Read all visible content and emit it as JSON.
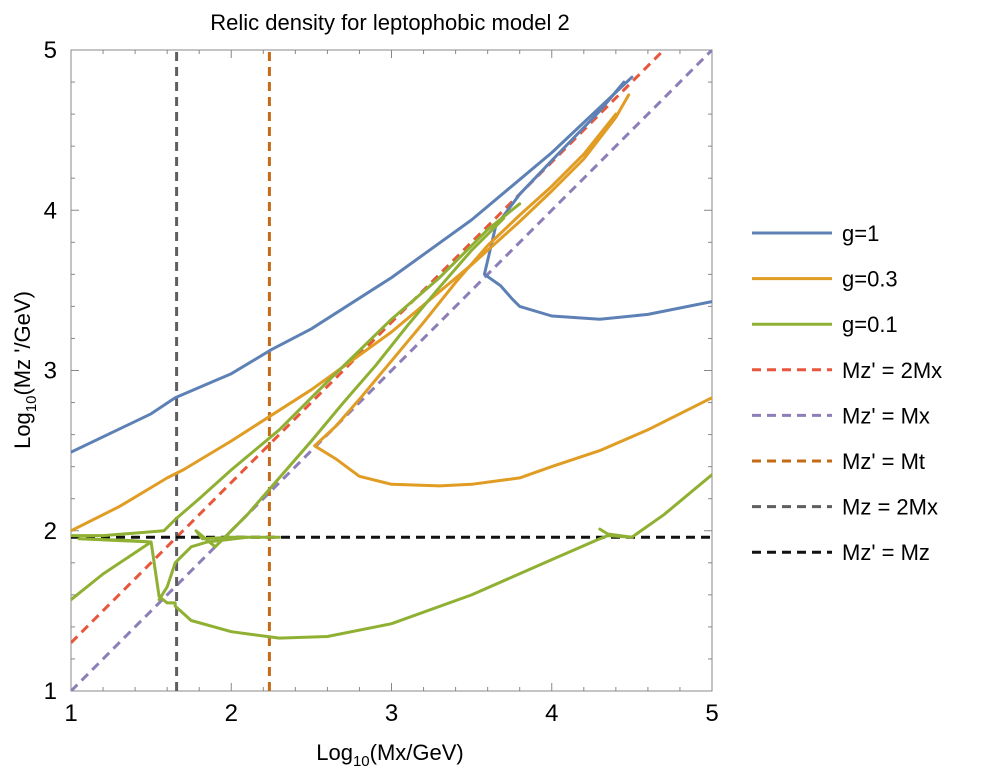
{
  "chart_data": {
    "type": "line",
    "title": "Relic density for leptophobic model 2",
    "xlabel": {
      "prefix": "Log",
      "sub": "10",
      "rest": "(Mx/GeV)"
    },
    "ylabel": {
      "prefix": "Log",
      "sub": "10",
      "rest": "(Mz '/GeV)"
    },
    "xlim": [
      1,
      5
    ],
    "ylim": [
      1,
      5
    ],
    "xticks": [
      1,
      2,
      3,
      4,
      5
    ],
    "yticks": [
      1,
      2,
      3,
      4,
      5
    ],
    "grid": false,
    "legend_position": "right",
    "series": [
      {
        "name": "g=1",
        "color": "#5E81B5",
        "style": "solid",
        "segments": [
          [
            [
              1,
              2.49
            ],
            [
              1.5,
              2.73
            ],
            [
              1.65,
              2.83
            ],
            [
              2,
              2.98
            ],
            [
              2.25,
              3.13
            ],
            [
              2.5,
              3.26
            ],
            [
              3,
              3.58
            ],
            [
              3.5,
              3.94
            ],
            [
              4,
              4.36
            ],
            [
              4.5,
              4.83
            ]
          ],
          [
            [
              4.45,
              4.8
            ],
            [
              4.3,
              4.62
            ],
            [
              4,
              4.31
            ],
            [
              3.8,
              4.1
            ],
            [
              3.65,
              3.9
            ],
            [
              3.58,
              3.6
            ],
            [
              3.68,
              3.53
            ],
            [
              3.75,
              3.45
            ],
            [
              3.8,
              3.4
            ],
            [
              4,
              3.34
            ],
            [
              4.3,
              3.32
            ],
            [
              4.6,
              3.35
            ],
            [
              5,
              3.43
            ]
          ]
        ]
      },
      {
        "name": "g=0.3",
        "color": "#E19C24",
        "style": "solid",
        "segments": [
          [
            [
              1,
              2.0
            ],
            [
              1.3,
              2.15
            ],
            [
              1.6,
              2.33
            ],
            [
              1.7,
              2.38
            ],
            [
              2,
              2.56
            ],
            [
              2.5,
              2.88
            ],
            [
              3,
              3.24
            ],
            [
              3.5,
              3.66
            ],
            [
              3.8,
              3.93
            ],
            [
              4,
              4.12
            ],
            [
              4.2,
              4.32
            ],
            [
              4.4,
              4.58
            ],
            [
              4.48,
              4.72
            ]
          ],
          [
            [
              4.4,
              4.6
            ],
            [
              4.2,
              4.35
            ],
            [
              4,
              4.15
            ],
            [
              3.8,
              3.97
            ],
            [
              3.6,
              3.78
            ],
            [
              3.4,
              3.55
            ],
            [
              3.2,
              3.3
            ],
            [
              3,
              3.06
            ],
            [
              2.8,
              2.82
            ],
            [
              2.65,
              2.65
            ],
            [
              2.52,
              2.53
            ],
            [
              2.65,
              2.45
            ],
            [
              2.8,
              2.34
            ],
            [
              3,
              2.29
            ],
            [
              3.3,
              2.28
            ],
            [
              3.5,
              2.29
            ],
            [
              3.8,
              2.33
            ],
            [
              4,
              2.4
            ],
            [
              4.3,
              2.5
            ],
            [
              4.6,
              2.63
            ],
            [
              5,
              2.83
            ]
          ]
        ]
      },
      {
        "name": "g=0.1",
        "color": "#8FB032",
        "style": "solid",
        "segments": [
          [
            [
              1,
              1.97
            ],
            [
              1.2,
              1.97
            ],
            [
              1.58,
              2.0
            ],
            [
              1.65,
              2.07
            ],
            [
              1.8,
              2.2
            ],
            [
              2,
              2.38
            ],
            [
              2.3,
              2.63
            ],
            [
              2.6,
              2.93
            ],
            [
              3,
              3.32
            ],
            [
              3.3,
              3.58
            ],
            [
              3.6,
              3.88
            ],
            [
              3.8,
              4.04
            ]
          ],
          [
            [
              3.7,
              3.95
            ],
            [
              3.5,
              3.75
            ],
            [
              3.3,
              3.52
            ],
            [
              3.1,
              3.28
            ],
            [
              2.9,
              3.03
            ],
            [
              2.7,
              2.8
            ],
            [
              2.5,
              2.56
            ],
            [
              2.3,
              2.33
            ],
            [
              2.1,
              2.1
            ],
            [
              1.9,
              1.9
            ],
            [
              1.78,
              2.0
            ],
            [
              1.82,
              1.95
            ],
            [
              2,
              1.96
            ],
            [
              2.3,
              1.96
            ]
          ],
          [
            [
              1,
              1.57
            ],
            [
              1.2,
              1.73
            ],
            [
              1.5,
              1.93
            ],
            [
              1.05,
              1.95
            ],
            [
              1.35,
              1.94
            ],
            [
              1.5,
              1.93
            ],
            [
              1.55,
              1.59
            ],
            [
              1.6,
              1.55
            ],
            [
              1.65,
              1.55
            ],
            [
              1.65,
              1.53
            ],
            [
              1.75,
              1.44
            ],
            [
              2,
              1.37
            ],
            [
              2.3,
              1.33
            ],
            [
              2.6,
              1.34
            ],
            [
              3,
              1.42
            ],
            [
              3.5,
              1.6
            ],
            [
              4,
              1.82
            ],
            [
              4.3,
              1.95
            ],
            [
              4.35,
              1.97
            ],
            [
              4.5,
              1.96
            ]
          ],
          [
            [
              4.3,
              2.01
            ],
            [
              4.35,
              1.98
            ],
            [
              4.5,
              1.96
            ],
            [
              4.7,
              2.1
            ],
            [
              5,
              2.35
            ]
          ],
          [
            [
              1.55,
              1.57
            ],
            [
              1.6,
              1.65
            ],
            [
              1.65,
              1.8
            ],
            [
              1.75,
              1.9
            ],
            [
              1.85,
              1.93
            ],
            [
              2.1,
              1.96
            ]
          ]
        ]
      },
      {
        "name": "Mz' = 2Mx",
        "color": "#E8573B",
        "style": "dashed",
        "segments": [
          [
            [
              1,
              1.301
            ],
            [
              4.699,
              5
            ]
          ]
        ]
      },
      {
        "name": "Mz' = Mx",
        "color": "#8D7EBA",
        "style": "dashed",
        "segments": [
          [
            [
              1,
              1
            ],
            [
              5,
              5
            ]
          ]
        ]
      },
      {
        "name": "Mz' = Mt",
        "color": "#C56A16",
        "style": "dashed",
        "segments": [
          [
            [
              2.238,
              1
            ],
            [
              2.238,
              5
            ]
          ]
        ]
      },
      {
        "name": "Mz = 2Mx",
        "color": "#5F5F5F",
        "style": "dashed",
        "segments": [
          [
            [
              1.659,
              1
            ],
            [
              1.659,
              5
            ]
          ]
        ]
      },
      {
        "name": "Mz' = Mz",
        "color": "#111111",
        "style": "dashed",
        "segments": [
          [
            [
              1,
              1.96
            ],
            [
              5,
              1.96
            ]
          ]
        ]
      }
    ]
  }
}
